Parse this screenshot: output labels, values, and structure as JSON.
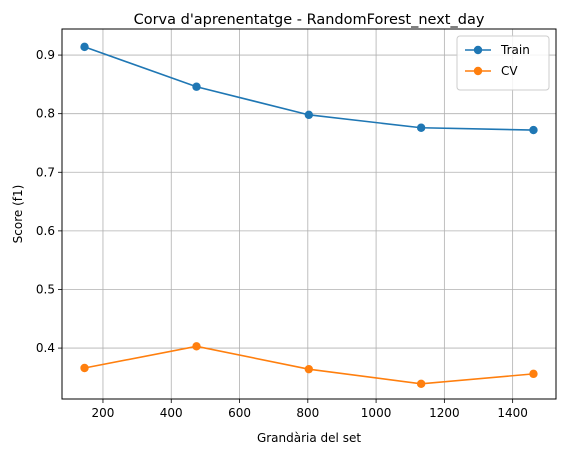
{
  "chart_data": {
    "type": "line",
    "title": "Corva d'aprenentatge - RandomForest_next_day",
    "xlabel": "Grandària del set",
    "ylabel": "Score (f1)",
    "x": [
      146,
      474,
      803,
      1132,
      1461
    ],
    "series": [
      {
        "name": "Train",
        "color": "#1f77b4",
        "values": [
          0.914,
          0.846,
          0.798,
          0.776,
          0.772
        ]
      },
      {
        "name": "CV",
        "color": "#ff7f0e",
        "values": [
          0.366,
          0.403,
          0.364,
          0.339,
          0.356
        ]
      }
    ],
    "xlim": [
      80,
      1527
    ],
    "ylim": [
      0.3131,
      0.9445
    ],
    "xticks": [
      200,
      400,
      600,
      800,
      1000,
      1200,
      1400
    ],
    "xtick_labels": [
      "200",
      "400",
      "600",
      "800",
      "1000",
      "1200",
      "1400"
    ],
    "yticks": [
      0.4,
      0.5,
      0.6,
      0.7,
      0.8,
      0.9
    ],
    "ytick_labels": [
      "0.4",
      "0.5",
      "0.6",
      "0.7",
      "0.8",
      "0.9"
    ],
    "grid": true,
    "legend_position": "top-right",
    "marker": "circle"
  }
}
